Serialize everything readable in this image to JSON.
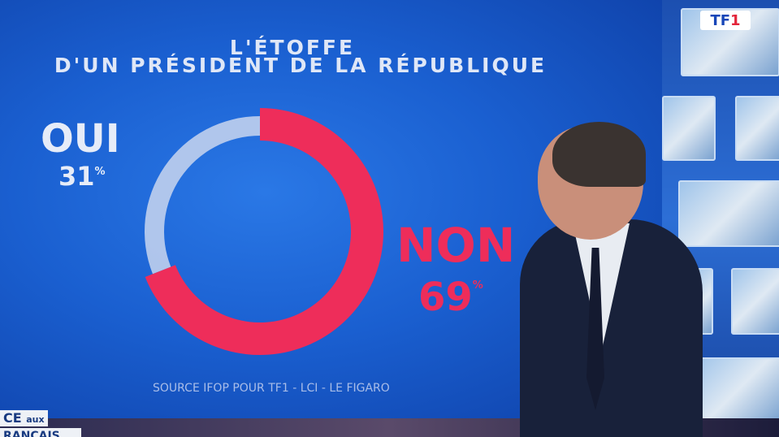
{
  "broadcaster": {
    "logo": "TF1"
  },
  "lower_third": {
    "line1_a": "CE",
    "line1_b": "aux",
    "line2": "RANÇAIS"
  },
  "chart_data": {
    "type": "pie",
    "style": "donut",
    "title": "L'ÉTOFFE",
    "subtitle": "D'UN PRÉSIDENT DE LA RÉPUBLIQUE",
    "categories": [
      "Oui",
      "Non"
    ],
    "values": [
      31,
      69
    ],
    "value_labels": [
      "31",
      "69"
    ],
    "unit": "%",
    "labels": [
      "OUI",
      "NON"
    ],
    "colors": [
      "#c9d6ee",
      "#ee2d5a"
    ],
    "source": "SOURCE IFOP POUR TF1 - LCI - LE FIGARO"
  }
}
